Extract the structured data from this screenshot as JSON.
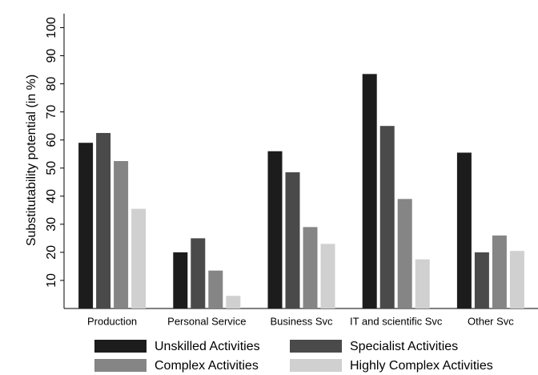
{
  "chart_data": {
    "type": "bar",
    "y_label": "Substitutability potential (in %)",
    "categories": [
      "Production",
      "Personal Service",
      "Business Svc",
      "IT and scientific Svc",
      "Other Svc"
    ],
    "series": [
      {
        "name": "Unskilled Activities",
        "color": "#1c1c1c",
        "values": [
          59,
          20,
          56,
          83.5,
          55.5
        ]
      },
      {
        "name": "Specialist Activities",
        "color": "#4a4a4a",
        "values": [
          62.5,
          25,
          48.5,
          65,
          20
        ]
      },
      {
        "name": "Complex Activities",
        "color": "#858585",
        "values": [
          52.5,
          13.5,
          29,
          39,
          26
        ]
      },
      {
        "name": "Highly Complex Activities",
        "color": "#d0d0d0",
        "values": [
          35.5,
          4.5,
          23,
          17.5,
          20.5
        ]
      }
    ],
    "ylim": [
      0,
      105
    ],
    "yticks": [
      10,
      20,
      30,
      40,
      50,
      60,
      70,
      80,
      90,
      100
    ],
    "grid": false
  }
}
